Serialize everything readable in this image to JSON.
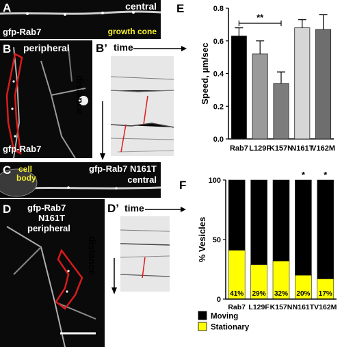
{
  "panels": {
    "A": {
      "letter": "A",
      "location": "central",
      "marker": "gfp-Rab7",
      "feature": "growth cone"
    },
    "B": {
      "letter": "B",
      "location": "peripheral",
      "marker": "gfp-Rab7"
    },
    "Bprime": {
      "letter": "B’",
      "time_label": "time",
      "distance_label": "distance"
    },
    "C": {
      "letter": "C",
      "marker": "gfp-Rab7 N161T",
      "location": "central",
      "cell_body_line1": "cell",
      "cell_body_line2": "body"
    },
    "D": {
      "letter": "D",
      "marker_line1": "gfp-Rab7",
      "marker_line2": "N161T",
      "location": "peripheral"
    },
    "Dprime": {
      "letter": "D’",
      "time_label": "time",
      "distance_label": "distance"
    },
    "E": {
      "letter": "E"
    },
    "F": {
      "letter": "F"
    }
  },
  "chart_data": [
    {
      "type": "bar",
      "panel": "E",
      "categories": [
        "Rab7",
        "L129F",
        "K157N",
        "N161T",
        "V162M"
      ],
      "values": [
        0.63,
        0.52,
        0.34,
        0.68,
        0.67
      ],
      "errors": [
        0.05,
        0.08,
        0.07,
        0.05,
        0.09
      ],
      "ylabel": "Speed, µm/sec",
      "ylim": [
        0,
        0.8
      ],
      "yticks": [
        "0.0",
        "0.2",
        "0.4",
        "0.6",
        "0.8"
      ],
      "bar_colors": [
        "#000000",
        "#9a9a9a",
        "#7c7c7c",
        "#d6d6d6",
        "#6e6e6e"
      ],
      "significance": {
        "from": "Rab7",
        "to": "K157N",
        "label": "**"
      }
    },
    {
      "type": "bar",
      "stacked": true,
      "panel": "F",
      "categories": [
        "Rab7",
        "L129F",
        "K157N",
        "N161T",
        "V162M"
      ],
      "ylabel": "% Vesicles",
      "ylim": [
        0,
        100
      ],
      "yticks": [
        "0",
        "50",
        "100"
      ],
      "series": [
        {
          "name": "Stationary",
          "color": "#ffff00",
          "values": [
            41,
            29,
            32,
            20,
            17
          ]
        },
        {
          "name": "Moving",
          "color": "#000000",
          "values": [
            59,
            71,
            68,
            80,
            83
          ]
        }
      ],
      "data_labels": [
        "41%",
        "29%",
        "32%",
        "20%",
        "17%"
      ],
      "markers": [
        "",
        "",
        "",
        "*",
        "*"
      ]
    }
  ]
}
